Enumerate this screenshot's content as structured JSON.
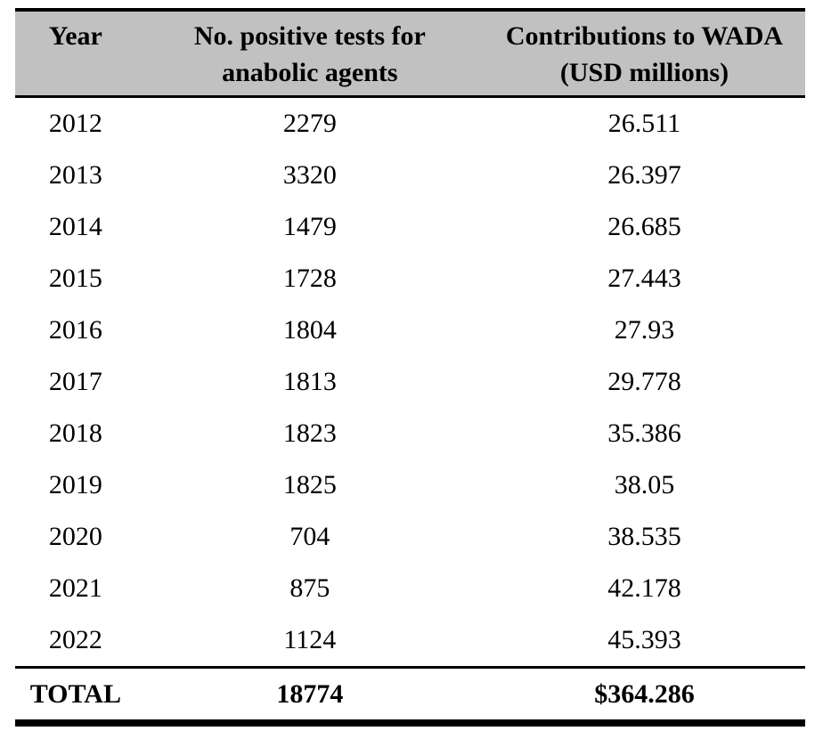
{
  "table": {
    "header": {
      "year": "Year",
      "tests_line1": "No. positive tests for",
      "tests_line2": "anabolic agents",
      "wada_line1": "Contributions to WADA",
      "wada_line2": "(USD millions)"
    },
    "rows": [
      {
        "year": "2012",
        "tests": "2279",
        "contribution": "26.511"
      },
      {
        "year": "2013",
        "tests": "3320",
        "contribution": "26.397"
      },
      {
        "year": "2014",
        "tests": "1479",
        "contribution": "26.685"
      },
      {
        "year": "2015",
        "tests": "1728",
        "contribution": "27.443"
      },
      {
        "year": "2016",
        "tests": "1804",
        "contribution": "27.93"
      },
      {
        "year": "2017",
        "tests": "1813",
        "contribution": "29.778"
      },
      {
        "year": "2018",
        "tests": "1823",
        "contribution": "35.386"
      },
      {
        "year": "2019",
        "tests": "1825",
        "contribution": "38.05"
      },
      {
        "year": "2020",
        "tests": "704",
        "contribution": "38.535"
      },
      {
        "year": "2021",
        "tests": "875",
        "contribution": "42.178"
      },
      {
        "year": "2022",
        "tests": "1124",
        "contribution": "45.393"
      }
    ],
    "total": {
      "label": "TOTAL",
      "tests": "18774",
      "contribution": "$364.286"
    }
  },
  "colors": {
    "header_background": "#c1c1c1",
    "border": "#000000",
    "text": "#000000",
    "page_background": "#ffffff"
  }
}
